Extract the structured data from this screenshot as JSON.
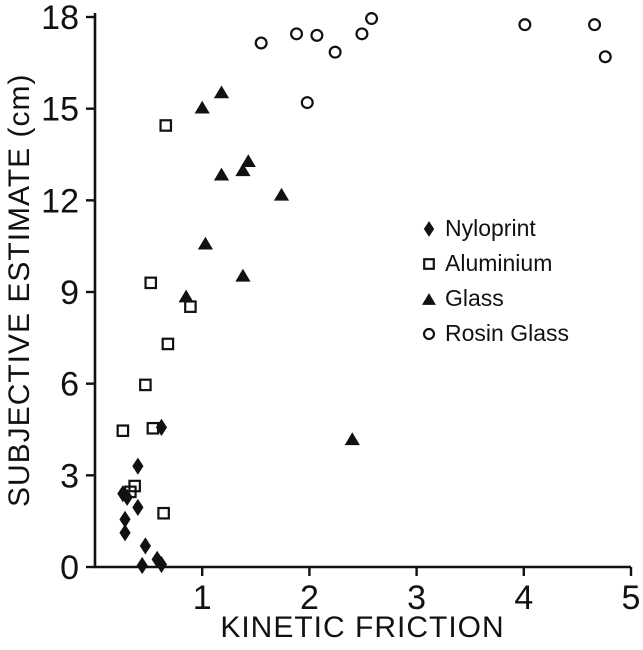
{
  "figure": {
    "background": "#ffffff",
    "foreground": "#111111"
  },
  "chart_data": {
    "type": "scatter",
    "title": "",
    "xlabel": "KINETIC FRICTION",
    "ylabel": "SUBJECTIVE ESTIMATE (cm)",
    "xlim": [
      0,
      5
    ],
    "ylim": [
      0,
      18
    ],
    "x_ticks": [
      "1",
      "2",
      "3",
      "4",
      "5"
    ],
    "x_tick_values": [
      1,
      2,
      3,
      4,
      5
    ],
    "y_ticks": [
      "0",
      "3",
      "6",
      "9",
      "12",
      "15",
      "18"
    ],
    "y_tick_values": [
      0,
      3,
      6,
      9,
      12,
      15,
      18
    ],
    "grid": false,
    "legend_position": "center-right",
    "series": [
      {
        "name": "Nyloprint",
        "marker": "filled-diamond",
        "icon": "diamond-icon",
        "points": [
          [
            0.62,
            4.57
          ],
          [
            0.4,
            3.3
          ],
          [
            0.26,
            2.4
          ],
          [
            0.3,
            2.28
          ],
          [
            0.4,
            1.95
          ],
          [
            0.28,
            1.56
          ],
          [
            0.28,
            1.12
          ],
          [
            0.47,
            0.69
          ],
          [
            0.44,
            0.05
          ],
          [
            0.58,
            0.25
          ],
          [
            0.62,
            0.08
          ]
        ]
      },
      {
        "name": "Aluminium",
        "marker": "open-square",
        "icon": "square-icon",
        "points": [
          [
            0.66,
            14.45
          ],
          [
            0.52,
            9.3
          ],
          [
            0.89,
            8.52
          ],
          [
            0.68,
            7.3
          ],
          [
            0.47,
            5.96
          ],
          [
            0.26,
            4.46
          ],
          [
            0.54,
            4.54
          ],
          [
            0.37,
            2.65
          ],
          [
            0.33,
            2.46
          ],
          [
            0.64,
            1.76
          ]
        ]
      },
      {
        "name": "Glass",
        "marker": "filled-triangle",
        "icon": "triangle-icon",
        "points": [
          [
            1.0,
            15.05
          ],
          [
            1.18,
            15.55
          ],
          [
            1.18,
            12.86
          ],
          [
            1.38,
            13.0
          ],
          [
            1.43,
            13.3
          ],
          [
            1.74,
            12.2
          ],
          [
            1.03,
            10.6
          ],
          [
            1.38,
            9.55
          ],
          [
            0.85,
            8.87
          ],
          [
            2.4,
            4.2
          ]
        ]
      },
      {
        "name": "Rosin Glass",
        "marker": "open-circle",
        "icon": "circle-icon",
        "points": [
          [
            1.55,
            17.15
          ],
          [
            1.88,
            17.45
          ],
          [
            2.07,
            17.4
          ],
          [
            2.24,
            16.85
          ],
          [
            2.49,
            17.45
          ],
          [
            2.58,
            17.95
          ],
          [
            1.98,
            15.2
          ],
          [
            4.01,
            17.75
          ],
          [
            4.66,
            17.75
          ],
          [
            4.76,
            16.7
          ]
        ]
      }
    ]
  }
}
